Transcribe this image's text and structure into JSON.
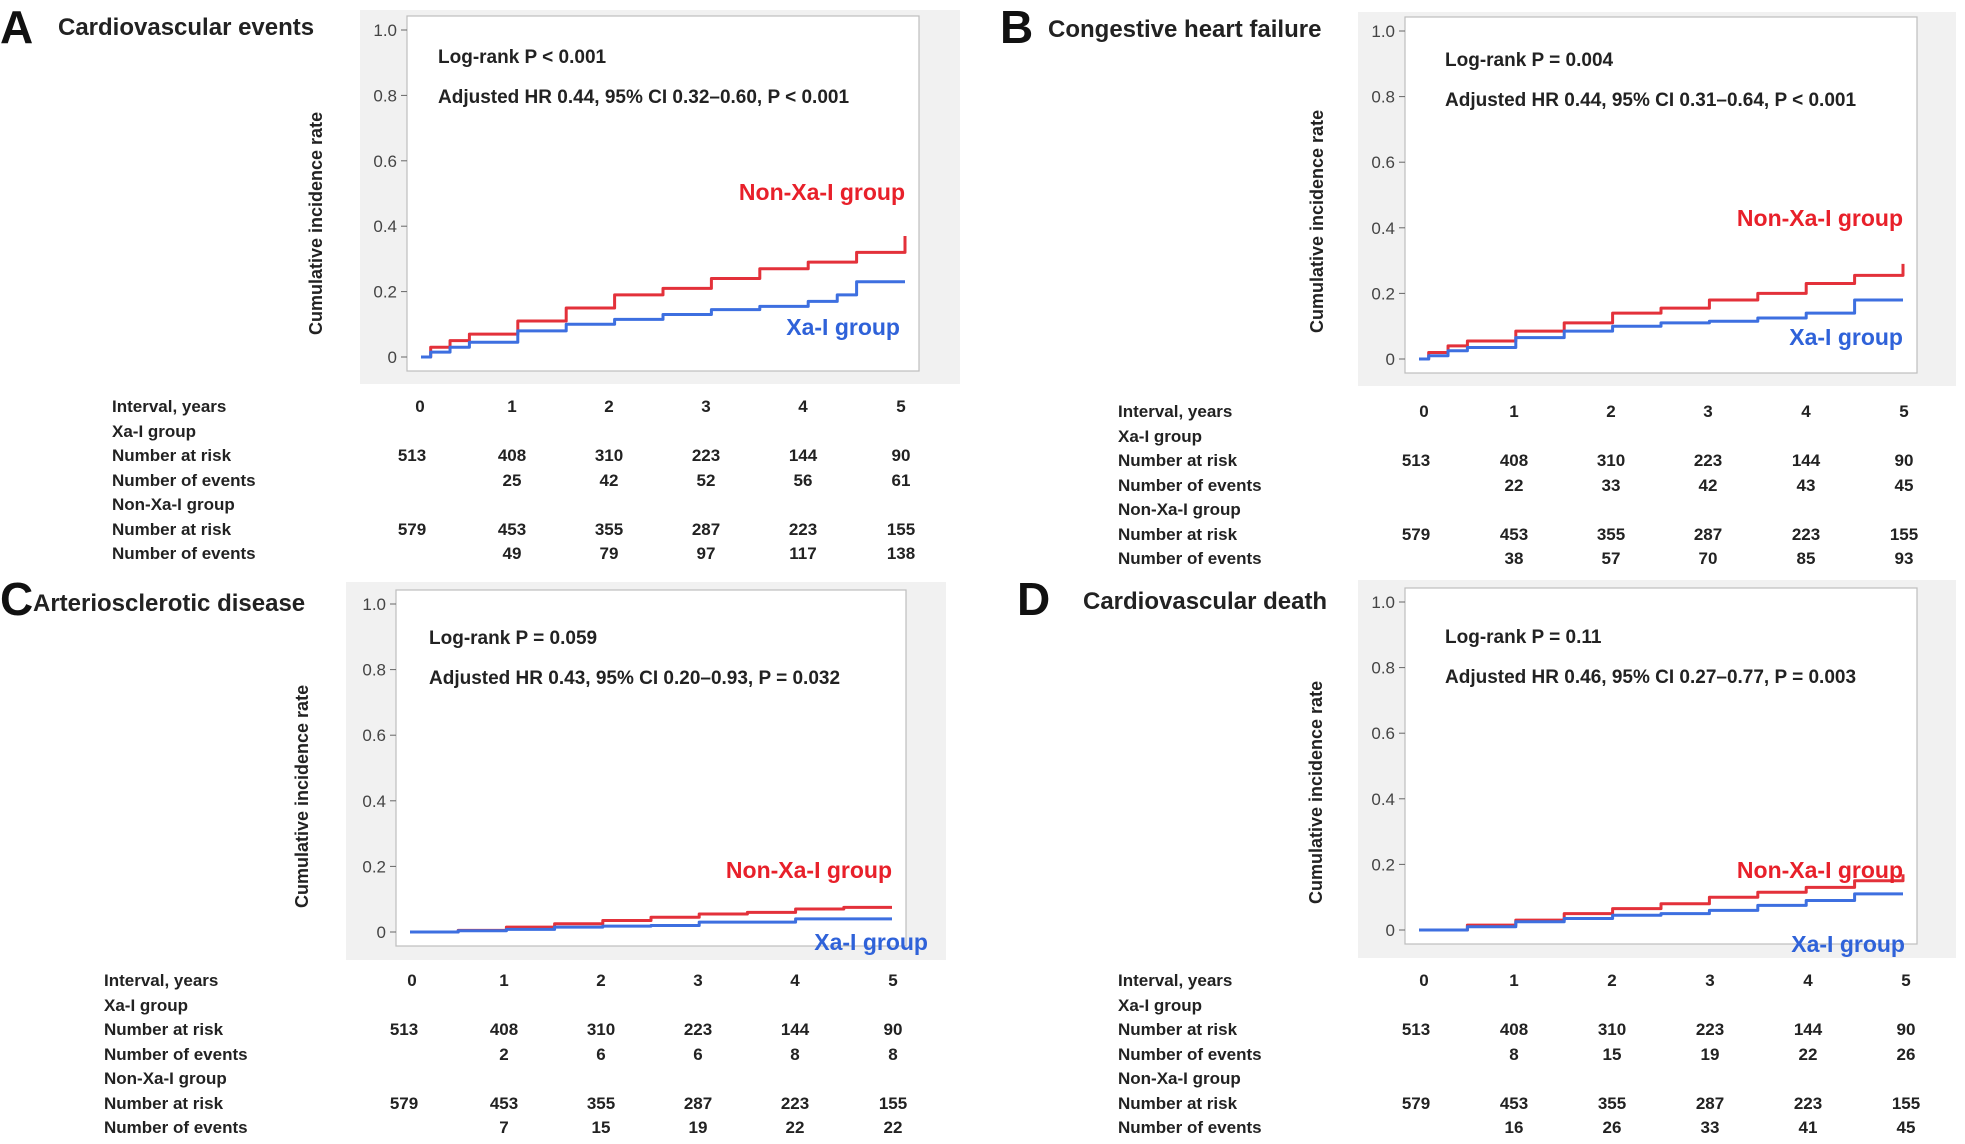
{
  "panels": [
    {
      "letter": "A",
      "title": "Cardiovascular events",
      "ylabel": "Cumulative incidence rate",
      "stats_line1": "Log-rank P < 0.001",
      "stats_line2": "Adjusted HR 0.44, 95% CI 0.32–0.60, P < 0.001",
      "red_label": "Non-Xa-I group",
      "blue_label": "Xa-I group",
      "table": {
        "interval_label": "Interval, years",
        "intervals": [
          "0",
          "1",
          "2",
          "3",
          "4",
          "5"
        ],
        "xa_group_label": "Xa-I group",
        "non_xa_group_label": "Non-Xa-I group",
        "risk_label": "Number at risk",
        "events_label": "Number of events",
        "xa_risk": [
          "513",
          "408",
          "310",
          "223",
          "144",
          "90"
        ],
        "xa_events": [
          "",
          "25",
          "42",
          "52",
          "56",
          "61"
        ],
        "non_risk": [
          "579",
          "453",
          "355",
          "287",
          "223",
          "155"
        ],
        "non_events": [
          "",
          "49",
          "79",
          "97",
          "117",
          "138"
        ]
      }
    },
    {
      "letter": "B",
      "title": "Congestive heart failure",
      "ylabel": "Cumulative incidence rate",
      "stats_line1": "Log-rank P = 0.004",
      "stats_line2": "Adjusted HR 0.44, 95% CI 0.31–0.64, P < 0.001",
      "red_label": "Non-Xa-I group",
      "blue_label": "Xa-I group",
      "table": {
        "interval_label": "Interval, years",
        "intervals": [
          "0",
          "1",
          "2",
          "3",
          "4",
          "5"
        ],
        "xa_group_label": "Xa-I group",
        "non_xa_group_label": "Non-Xa-I group",
        "risk_label": "Number at risk",
        "events_label": "Number of events",
        "xa_risk": [
          "513",
          "408",
          "310",
          "223",
          "144",
          "90"
        ],
        "xa_events": [
          "",
          "22",
          "33",
          "42",
          "43",
          "45"
        ],
        "non_risk": [
          "579",
          "453",
          "355",
          "287",
          "223",
          "155"
        ],
        "non_events": [
          "",
          "38",
          "57",
          "70",
          "85",
          "93"
        ]
      }
    },
    {
      "letter": "C",
      "title": "Arteriosclerotic disease",
      "ylabel": "Cumulative incidence rate",
      "stats_line1": "Log-rank P = 0.059",
      "stats_line2": "Adjusted HR 0.43, 95% CI 0.20–0.93, P = 0.032",
      "red_label": "Non-Xa-I group",
      "blue_label": "Xa-I group",
      "table": {
        "interval_label": "Interval, years",
        "intervals": [
          "0",
          "1",
          "2",
          "3",
          "4",
          "5"
        ],
        "xa_group_label": "Xa-I group",
        "non_xa_group_label": "Non-Xa-I group",
        "risk_label": "Number at risk",
        "events_label": "Number of events",
        "xa_risk": [
          "513",
          "408",
          "310",
          "223",
          "144",
          "90"
        ],
        "xa_events": [
          "",
          "2",
          "6",
          "6",
          "8",
          "8"
        ],
        "non_risk": [
          "579",
          "453",
          "355",
          "287",
          "223",
          "155"
        ],
        "non_events": [
          "",
          "7",
          "15",
          "19",
          "22",
          "22"
        ]
      }
    },
    {
      "letter": "D",
      "title": "Cardiovascular death",
      "ylabel": "Cumulative incidence rate",
      "stats_line1": "Log-rank P = 0.11",
      "stats_line2": "Adjusted HR 0.46, 95% CI 0.27–0.77, P = 0.003",
      "red_label": "Non-Xa-I group",
      "blue_label": "Xa-I group",
      "table": {
        "interval_label": "Interval, years",
        "intervals": [
          "0",
          "1",
          "2",
          "3",
          "4",
          "5"
        ],
        "xa_group_label": "Xa-I group",
        "non_xa_group_label": "Non-Xa-I group",
        "risk_label": "Number at risk",
        "events_label": "Number of events",
        "xa_risk": [
          "513",
          "408",
          "310",
          "223",
          "144",
          "90"
        ],
        "xa_events": [
          "",
          "8",
          "15",
          "19",
          "22",
          "26"
        ],
        "non_risk": [
          "579",
          "453",
          "355",
          "287",
          "223",
          "155"
        ],
        "non_events": [
          "",
          "16",
          "26",
          "33",
          "41",
          "45"
        ]
      }
    }
  ],
  "colors": {
    "red": "#e3313a",
    "blue": "#3d6fe0",
    "red_text": "#e8202a",
    "blue_text": "#2f62d9"
  },
  "chart_data": [
    {
      "type": "line",
      "title": "Cardiovascular events",
      "ylabel": "Cumulative incidence rate",
      "xlim": [
        0,
        5
      ],
      "ylim": [
        0,
        1.0
      ],
      "yticks": [
        "0",
        "0.2",
        "0.4",
        "0.6",
        "0.8",
        "1.0"
      ],
      "series": [
        {
          "name": "Non-Xa-I group",
          "x": [
            0,
            0.1,
            0.3,
            0.5,
            1,
            1.5,
            2,
            2.5,
            3,
            3.5,
            4,
            4.5,
            5
          ],
          "y": [
            0,
            0.03,
            0.05,
            0.07,
            0.11,
            0.15,
            0.19,
            0.21,
            0.24,
            0.27,
            0.29,
            0.32,
            0.37
          ]
        },
        {
          "name": "Xa-I group",
          "x": [
            0,
            0.1,
            0.3,
            0.5,
            1,
            1.5,
            2,
            2.5,
            3,
            3.5,
            4,
            4.3,
            4.5,
            5
          ],
          "y": [
            0,
            0.015,
            0.03,
            0.045,
            0.08,
            0.1,
            0.115,
            0.13,
            0.145,
            0.155,
            0.17,
            0.19,
            0.23,
            0.23
          ]
        }
      ]
    },
    {
      "type": "line",
      "title": "Congestive heart failure",
      "ylabel": "Cumulative incidence rate",
      "xlim": [
        0,
        5
      ],
      "ylim": [
        0,
        1.0
      ],
      "yticks": [
        "0",
        "0.2",
        "0.4",
        "0.6",
        "0.8",
        "1.0"
      ],
      "series": [
        {
          "name": "Non-Xa-I group",
          "x": [
            0,
            0.1,
            0.3,
            0.5,
            1,
            1.5,
            2,
            2.5,
            3,
            3.5,
            4,
            4.5,
            5
          ],
          "y": [
            0,
            0.02,
            0.04,
            0.055,
            0.085,
            0.11,
            0.14,
            0.155,
            0.18,
            0.2,
            0.23,
            0.255,
            0.29
          ]
        },
        {
          "name": "Xa-I group",
          "x": [
            0,
            0.1,
            0.3,
            0.5,
            1,
            1.5,
            2,
            2.5,
            3,
            3.5,
            4,
            4.5,
            5
          ],
          "y": [
            0,
            0.01,
            0.025,
            0.035,
            0.065,
            0.085,
            0.1,
            0.11,
            0.115,
            0.125,
            0.14,
            0.18,
            0.18
          ]
        }
      ]
    },
    {
      "type": "line",
      "title": "Arteriosclerotic disease",
      "ylabel": "Cumulative incidence rate",
      "xlim": [
        0,
        5
      ],
      "ylim": [
        0,
        1.0
      ],
      "yticks": [
        "0",
        "0.2",
        "0.4",
        "0.6",
        "0.8",
        "1.0"
      ],
      "series": [
        {
          "name": "Non-Xa-I group",
          "x": [
            0,
            0.5,
            1,
            1.5,
            2,
            2.5,
            3,
            3.5,
            4,
            4.5,
            5
          ],
          "y": [
            0,
            0.005,
            0.015,
            0.025,
            0.035,
            0.045,
            0.055,
            0.06,
            0.07,
            0.075,
            0.075
          ]
        },
        {
          "name": "Xa-I group",
          "x": [
            0,
            0.5,
            1,
            1.5,
            2,
            2.5,
            3,
            3.5,
            4,
            4.5,
            5
          ],
          "y": [
            0,
            0.004,
            0.008,
            0.015,
            0.018,
            0.02,
            0.03,
            0.03,
            0.04,
            0.04,
            0.04
          ]
        }
      ]
    },
    {
      "type": "line",
      "title": "Cardiovascular death",
      "ylabel": "Cumulative incidence rate",
      "xlim": [
        0,
        5
      ],
      "ylim": [
        0,
        1.0
      ],
      "yticks": [
        "0",
        "0.2",
        "0.4",
        "0.6",
        "0.8",
        "1.0"
      ],
      "series": [
        {
          "name": "Non-Xa-I group",
          "x": [
            0,
            0.5,
            1,
            1.5,
            2,
            2.5,
            3,
            3.5,
            4,
            4.5,
            5
          ],
          "y": [
            0,
            0.015,
            0.03,
            0.05,
            0.065,
            0.08,
            0.1,
            0.115,
            0.13,
            0.15,
            0.17
          ]
        },
        {
          "name": "Xa-I group",
          "x": [
            0,
            0.5,
            1,
            1.5,
            2,
            2.5,
            3,
            3.5,
            4,
            4.5,
            5
          ],
          "y": [
            0,
            0.01,
            0.025,
            0.035,
            0.045,
            0.05,
            0.06,
            0.075,
            0.09,
            0.11,
            0.11
          ]
        }
      ]
    }
  ]
}
